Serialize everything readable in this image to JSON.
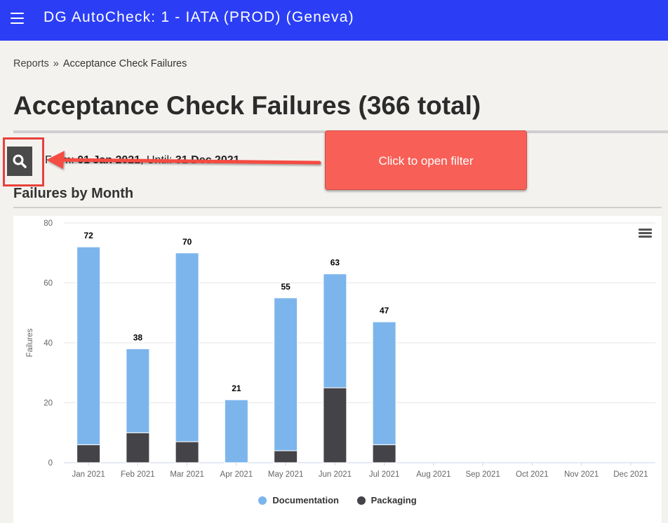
{
  "header": {
    "title": "DG AutoCheck: 1 - IATA (PROD) (Geneva)",
    "menu_icon": "hamburger-menu-icon"
  },
  "breadcrumb": {
    "parent": "Reports",
    "separator": "»",
    "current": "Acceptance Check Failures"
  },
  "page": {
    "title": "Acceptance Check Failures (366 total)"
  },
  "filter": {
    "search_icon": "search-icon",
    "from_label": "From:",
    "from_value": "01 Jan 2021",
    "until_label": "Until:",
    "until_value": "31 Dec 2021"
  },
  "callout": {
    "text": "Click to open filter"
  },
  "section": {
    "title": "Failures by Month"
  },
  "chart_data": {
    "type": "bar",
    "stacked": true,
    "categories": [
      "Jan 2021",
      "Feb 2021",
      "Mar 2021",
      "Apr 2021",
      "May 2021",
      "Jun 2021",
      "Jul 2021",
      "Aug 2021",
      "Sep 2021",
      "Oct 2021",
      "Nov 2021",
      "Dec 2021"
    ],
    "series": [
      {
        "name": "Documentation",
        "color": "#7cb5ec",
        "values": [
          66,
          28,
          63,
          21,
          51,
          38,
          41,
          0,
          0,
          0,
          0,
          0
        ]
      },
      {
        "name": "Packaging",
        "color": "#434348",
        "values": [
          6,
          10,
          7,
          0,
          4,
          25,
          6,
          0,
          0,
          0,
          0,
          0
        ]
      }
    ],
    "totals": [
      72,
      38,
      70,
      21,
      55,
      63,
      47,
      null,
      null,
      null,
      null,
      null
    ],
    "ylabel": "Failures",
    "ylim": [
      0,
      80
    ],
    "yticks": [
      0,
      20,
      40,
      60,
      80
    ],
    "grid": true,
    "legend": "bottom-center"
  },
  "chart_menu_icon": "chart-context-menu-icon"
}
